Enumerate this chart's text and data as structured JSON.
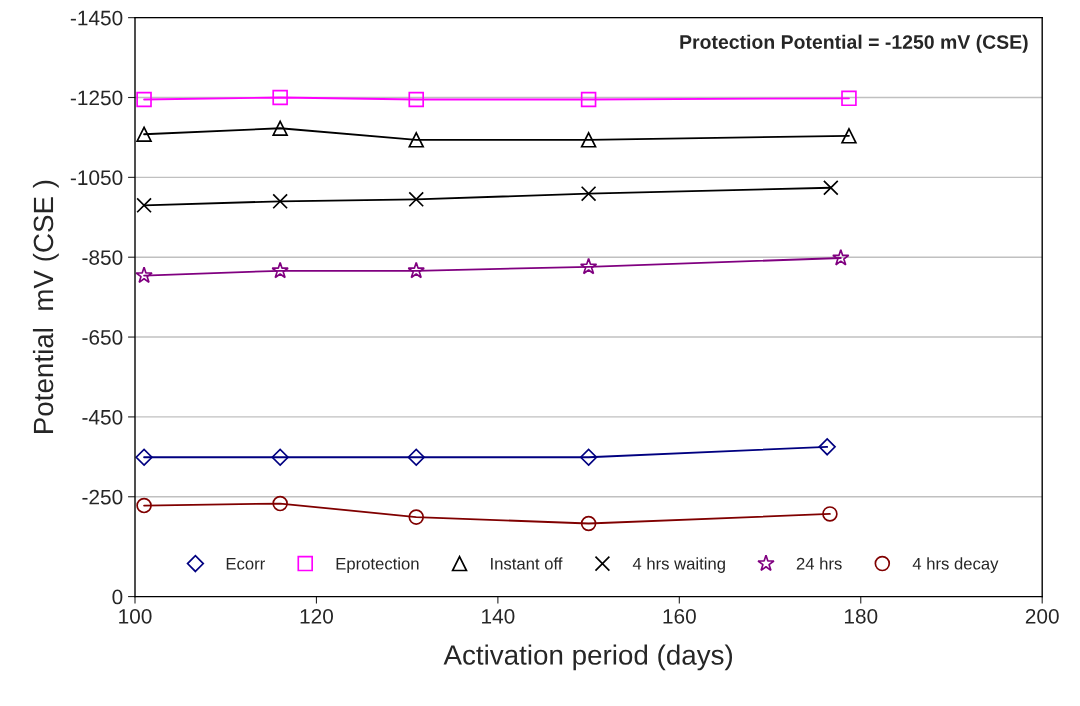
{
  "chart_data": {
    "type": "line",
    "xlabel": "Activation period (days)",
    "ylabel": "Potential  mV (CSE )",
    "annotations": [
      "Protection Potential = -1250 mV (CSE)"
    ],
    "xlim": [
      100,
      200
    ],
    "xticks": [
      100,
      120,
      140,
      160,
      180,
      200
    ],
    "ylim": [
      0,
      -1450
    ],
    "yticks": [
      0,
      {
        "value": -250,
        "label": "-250"
      },
      {
        "value": -450,
        "label": "-450"
      },
      {
        "value": -650,
        "label": "-650"
      },
      {
        "value": -850,
        "label": "-850"
      },
      {
        "value": -1050,
        "label": "-1050"
      },
      {
        "value": -1250,
        "label": "-1250"
      },
      {
        "value": -1450,
        "label": "-1450"
      }
    ],
    "grid": "y",
    "legend": "bottom",
    "line_style": "solid",
    "series": [
      {
        "name": "Ecorr",
        "color": "#000080",
        "marker": "diamond",
        "x": [
          101,
          116,
          131,
          150,
          176.3
        ],
        "values": [
          -349,
          -349,
          -349,
          -349,
          -375
        ]
      },
      {
        "name": "Eprotection",
        "color": "#ff00ff",
        "marker": "square",
        "x": [
          101,
          116,
          131,
          150,
          178.7
        ],
        "values": [
          -1245,
          -1250,
          -1245,
          -1245,
          -1248
        ]
      },
      {
        "name": "Instant off",
        "color": "#000000",
        "marker": "triangle",
        "x": [
          101,
          116,
          131,
          150,
          178.7
        ],
        "values": [
          -1158,
          -1173,
          -1144,
          -1144,
          -1154
        ]
      },
      {
        "name": "4 hrs waiting",
        "color": "#000000",
        "marker": "cross",
        "x": [
          101,
          116,
          131,
          150,
          176.7
        ],
        "values": [
          -980,
          -990,
          -995,
          -1009,
          -1024
        ]
      },
      {
        "name": "24 hrs",
        "color": "#800080",
        "marker": "star",
        "x": [
          101,
          116,
          131,
          150,
          177.8
        ],
        "values": [
          -804,
          -816,
          -816,
          -826,
          -848
        ]
      },
      {
        "name": "4 hrs decay",
        "color": "#800000",
        "marker": "circle",
        "x": [
          101,
          116,
          131,
          150,
          176.6
        ],
        "values": [
          -228,
          -233,
          -199,
          -183,
          -207
        ]
      }
    ]
  }
}
